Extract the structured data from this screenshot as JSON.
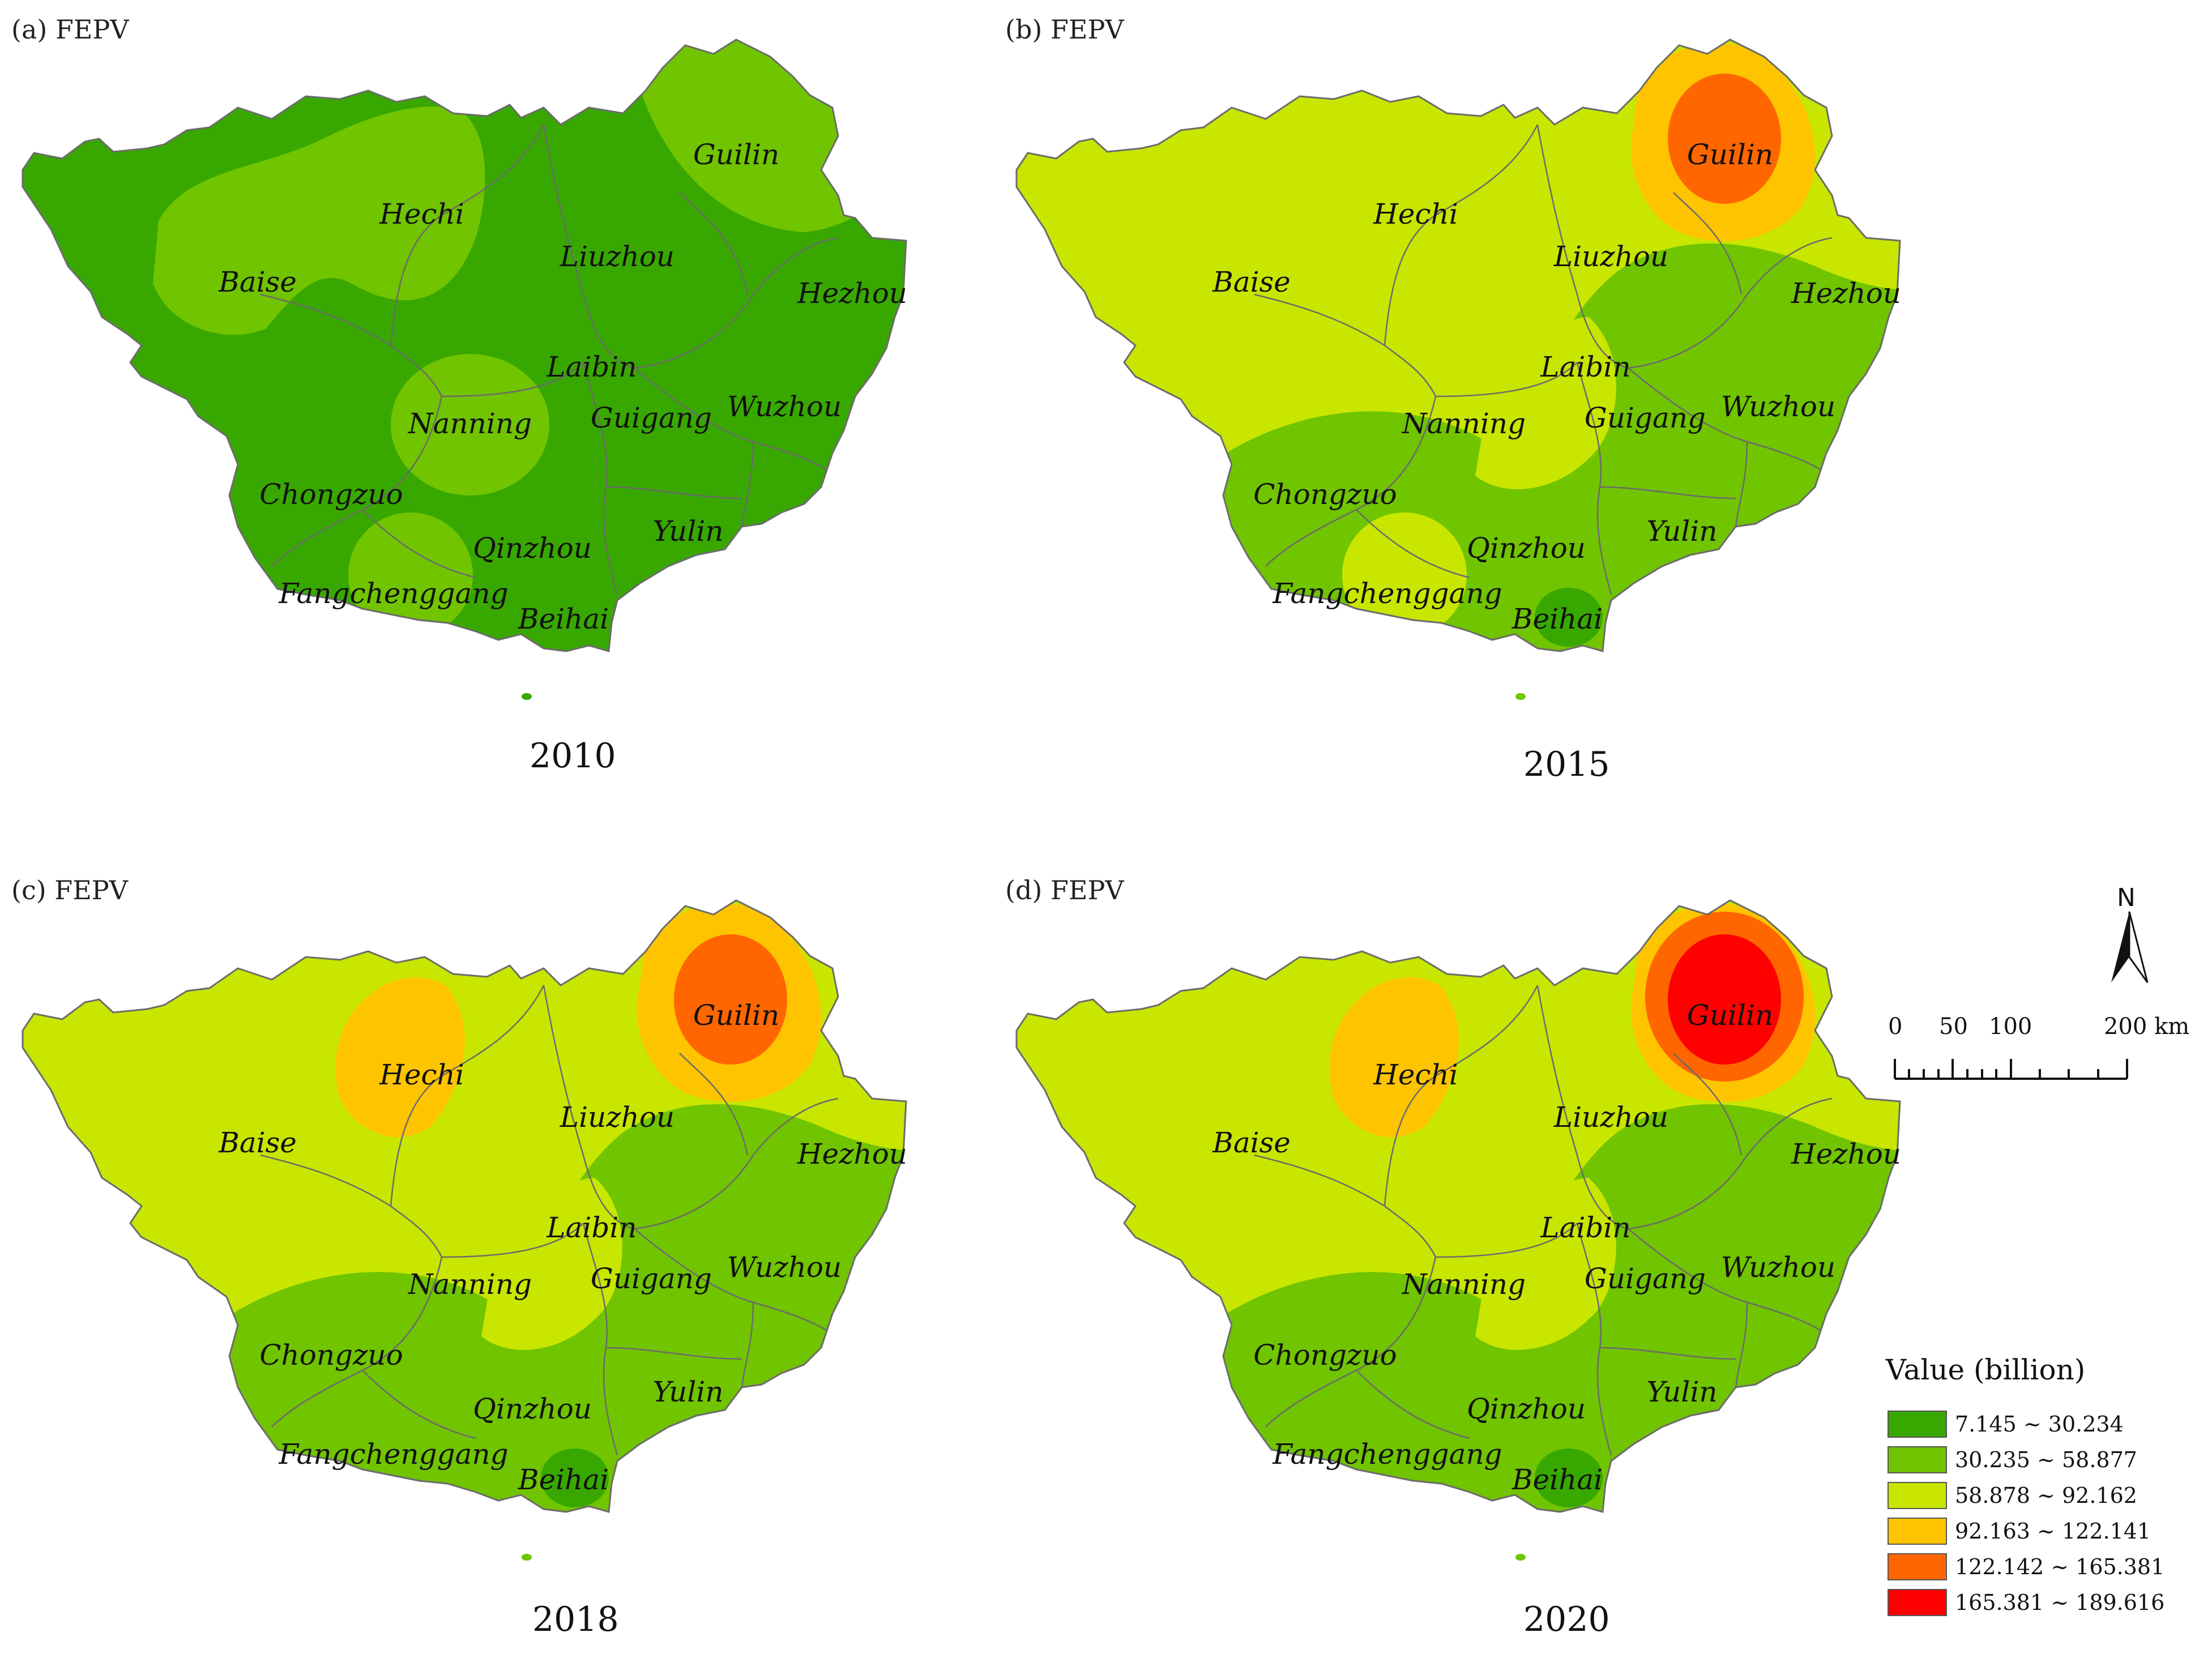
{
  "legend": {
    "title": "Value (billion)",
    "classes": [
      {
        "label": "7.145 ~ 30.234",
        "color": "#38a800"
      },
      {
        "label": "30.235 ~ 58.877",
        "color": "#70c400"
      },
      {
        "label": "58.878 ~ 92.162",
        "color": "#c8e600"
      },
      {
        "label": "92.163 ~ 122.141",
        "color": "#ffc400"
      },
      {
        "label": "122.142 ~ 165.381",
        "color": "#ff6600"
      },
      {
        "label": "165.381 ~ 189.616",
        "color": "#ff0000"
      }
    ]
  },
  "scale_bar": {
    "ticks": [
      "0",
      "50",
      "100",
      "200 km"
    ]
  },
  "north_label": "N",
  "panels": [
    {
      "label": "(a) FEPV",
      "year": "2010",
      "base_class": 0,
      "zones": [
        {
          "class": 1,
          "desc": "guilin-northeast"
        },
        {
          "class": 1,
          "desc": "hechi-baise"
        },
        {
          "class": 1,
          "desc": "nanning"
        },
        {
          "class": 1,
          "desc": "fangchenggang"
        }
      ],
      "cities": [
        "Guilin",
        "Hechi",
        "Baise",
        "Liuzhou",
        "Hezhou",
        "Laibin",
        "Nanning",
        "Guigang",
        "Wuzhou",
        "Chongzuo",
        "Qinzhou",
        "Yulin",
        "Fangchenggang",
        "Beihai"
      ]
    },
    {
      "label": "(b) FEPV",
      "year": "2015",
      "base_class": 2,
      "zones": [
        {
          "class": 1,
          "desc": "south-east"
        },
        {
          "class": 2,
          "desc": "nanning-lobe"
        },
        {
          "class": 2,
          "desc": "fangchenggang"
        },
        {
          "class": 0,
          "desc": "beihai"
        },
        {
          "class": 3,
          "desc": "guilin-outer"
        },
        {
          "class": 4,
          "desc": "guilin-inner"
        }
      ],
      "cities": [
        "Guilin",
        "Hechi",
        "Baise",
        "Liuzhou",
        "Hezhou",
        "Laibin",
        "Nanning",
        "Guigang",
        "Wuzhou",
        "Chongzuo",
        "Qinzhou",
        "Yulin",
        "Fangchenggang",
        "Beihai"
      ]
    },
    {
      "label": "(c) FEPV",
      "year": "2018",
      "base_class": 2,
      "zones": [
        {
          "class": 1,
          "desc": "south-east"
        },
        {
          "class": 2,
          "desc": "nanning-lobe"
        },
        {
          "class": 0,
          "desc": "beihai"
        },
        {
          "class": 1,
          "desc": "hezhou-dot"
        },
        {
          "class": 3,
          "desc": "hechi"
        },
        {
          "class": 3,
          "desc": "guilin-outer"
        },
        {
          "class": 4,
          "desc": "guilin-inner"
        }
      ],
      "cities": [
        "Guilin",
        "Hechi",
        "Baise",
        "Liuzhou",
        "Hezhou",
        "Laibin",
        "Nanning",
        "Guigang",
        "Wuzhou",
        "Chongzuo",
        "Qinzhou",
        "Yulin",
        "Fangchenggang",
        "Beihai"
      ]
    },
    {
      "label": "(d) FEPV",
      "year": "2020",
      "base_class": 2,
      "zones": [
        {
          "class": 1,
          "desc": "south-east"
        },
        {
          "class": 2,
          "desc": "nanning-lobe"
        },
        {
          "class": 0,
          "desc": "beihai"
        },
        {
          "class": 1,
          "desc": "hezhou-dot"
        },
        {
          "class": 3,
          "desc": "hechi"
        },
        {
          "class": 3,
          "desc": "guilin-outer"
        },
        {
          "class": 4,
          "desc": "guilin-middle"
        },
        {
          "class": 5,
          "desc": "guilin-inner"
        }
      ],
      "cities": [
        "Guilin",
        "Hechi",
        "Baise",
        "Liuzhou",
        "Hezhou",
        "Laibin",
        "Nanning",
        "Guigang",
        "Wuzhou",
        "Chongzuo",
        "Qinzhou",
        "Yulin",
        "Fangchenggang",
        "Beihai"
      ]
    }
  ]
}
